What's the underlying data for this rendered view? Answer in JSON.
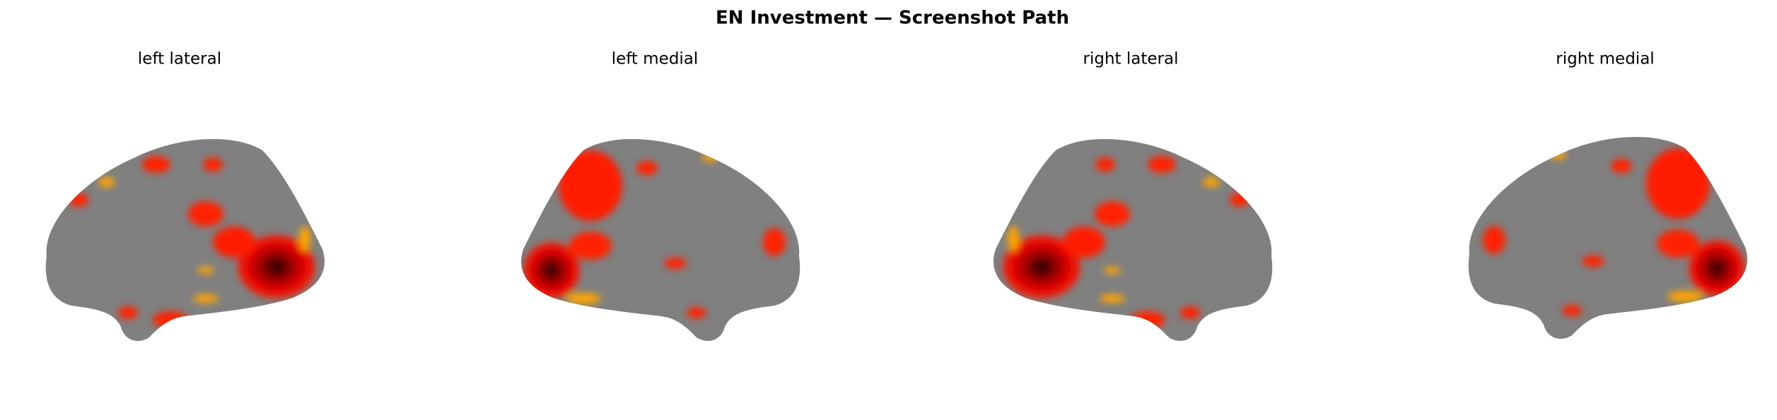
{
  "header": {
    "title": "EN Investment — Screenshot Path"
  },
  "panels": [
    {
      "label": "left lateral"
    },
    {
      "label": "left medial"
    },
    {
      "label": "right lateral"
    },
    {
      "label": "right medial"
    }
  ]
}
